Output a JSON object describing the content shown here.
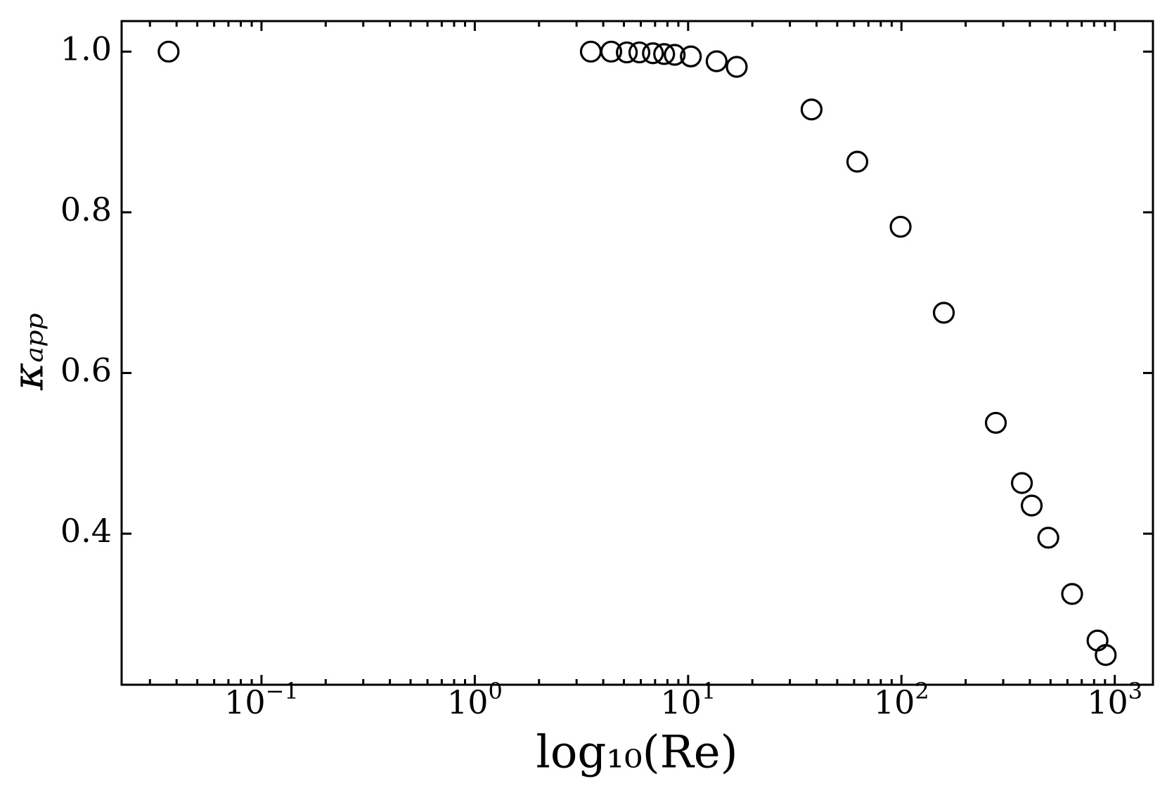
{
  "chart_data": {
    "type": "scatter",
    "xlabel": "log₁₀(Re)",
    "ylabel": "κₐₚₚ",
    "x": [
      0.0367,
      3.5,
      4.36,
      5.16,
      5.91,
      6.84,
      7.72,
      8.65,
      10.3,
      13.6,
      16.9,
      37.9,
      62.1,
      99.1,
      158,
      277,
      367,
      408,
      488,
      631,
      830,
      907
    ],
    "series": [
      {
        "color": "#000000",
        "values": [
          1.0,
          1.0,
          1.0,
          0.999,
          0.999,
          0.998,
          0.997,
          0.996,
          0.994,
          0.988,
          0.981,
          0.928,
          0.863,
          0.782,
          0.675,
          0.538,
          0.463,
          0.435,
          0.395,
          0.325,
          0.267,
          0.249
        ]
      }
    ],
    "xscale": "log",
    "xlim": [
      0.0221,
      1510
    ],
    "ylim": [
      0.212,
      1.038
    ],
    "xticks": [
      {
        "value": 0.1,
        "label": "10",
        "exponent": "−1"
      },
      {
        "value": 1,
        "label": "10",
        "exponent": "0"
      },
      {
        "value": 10,
        "label": "10",
        "exponent": "1"
      },
      {
        "value": 100,
        "label": "10",
        "exponent": "2"
      },
      {
        "value": 1000,
        "label": "10",
        "exponent": "3"
      }
    ],
    "yticks": [
      0.4,
      0.6,
      0.8,
      {
        "value": 1,
        "label": "1.0"
      }
    ],
    "minor_xticks": true,
    "grid": false
  }
}
